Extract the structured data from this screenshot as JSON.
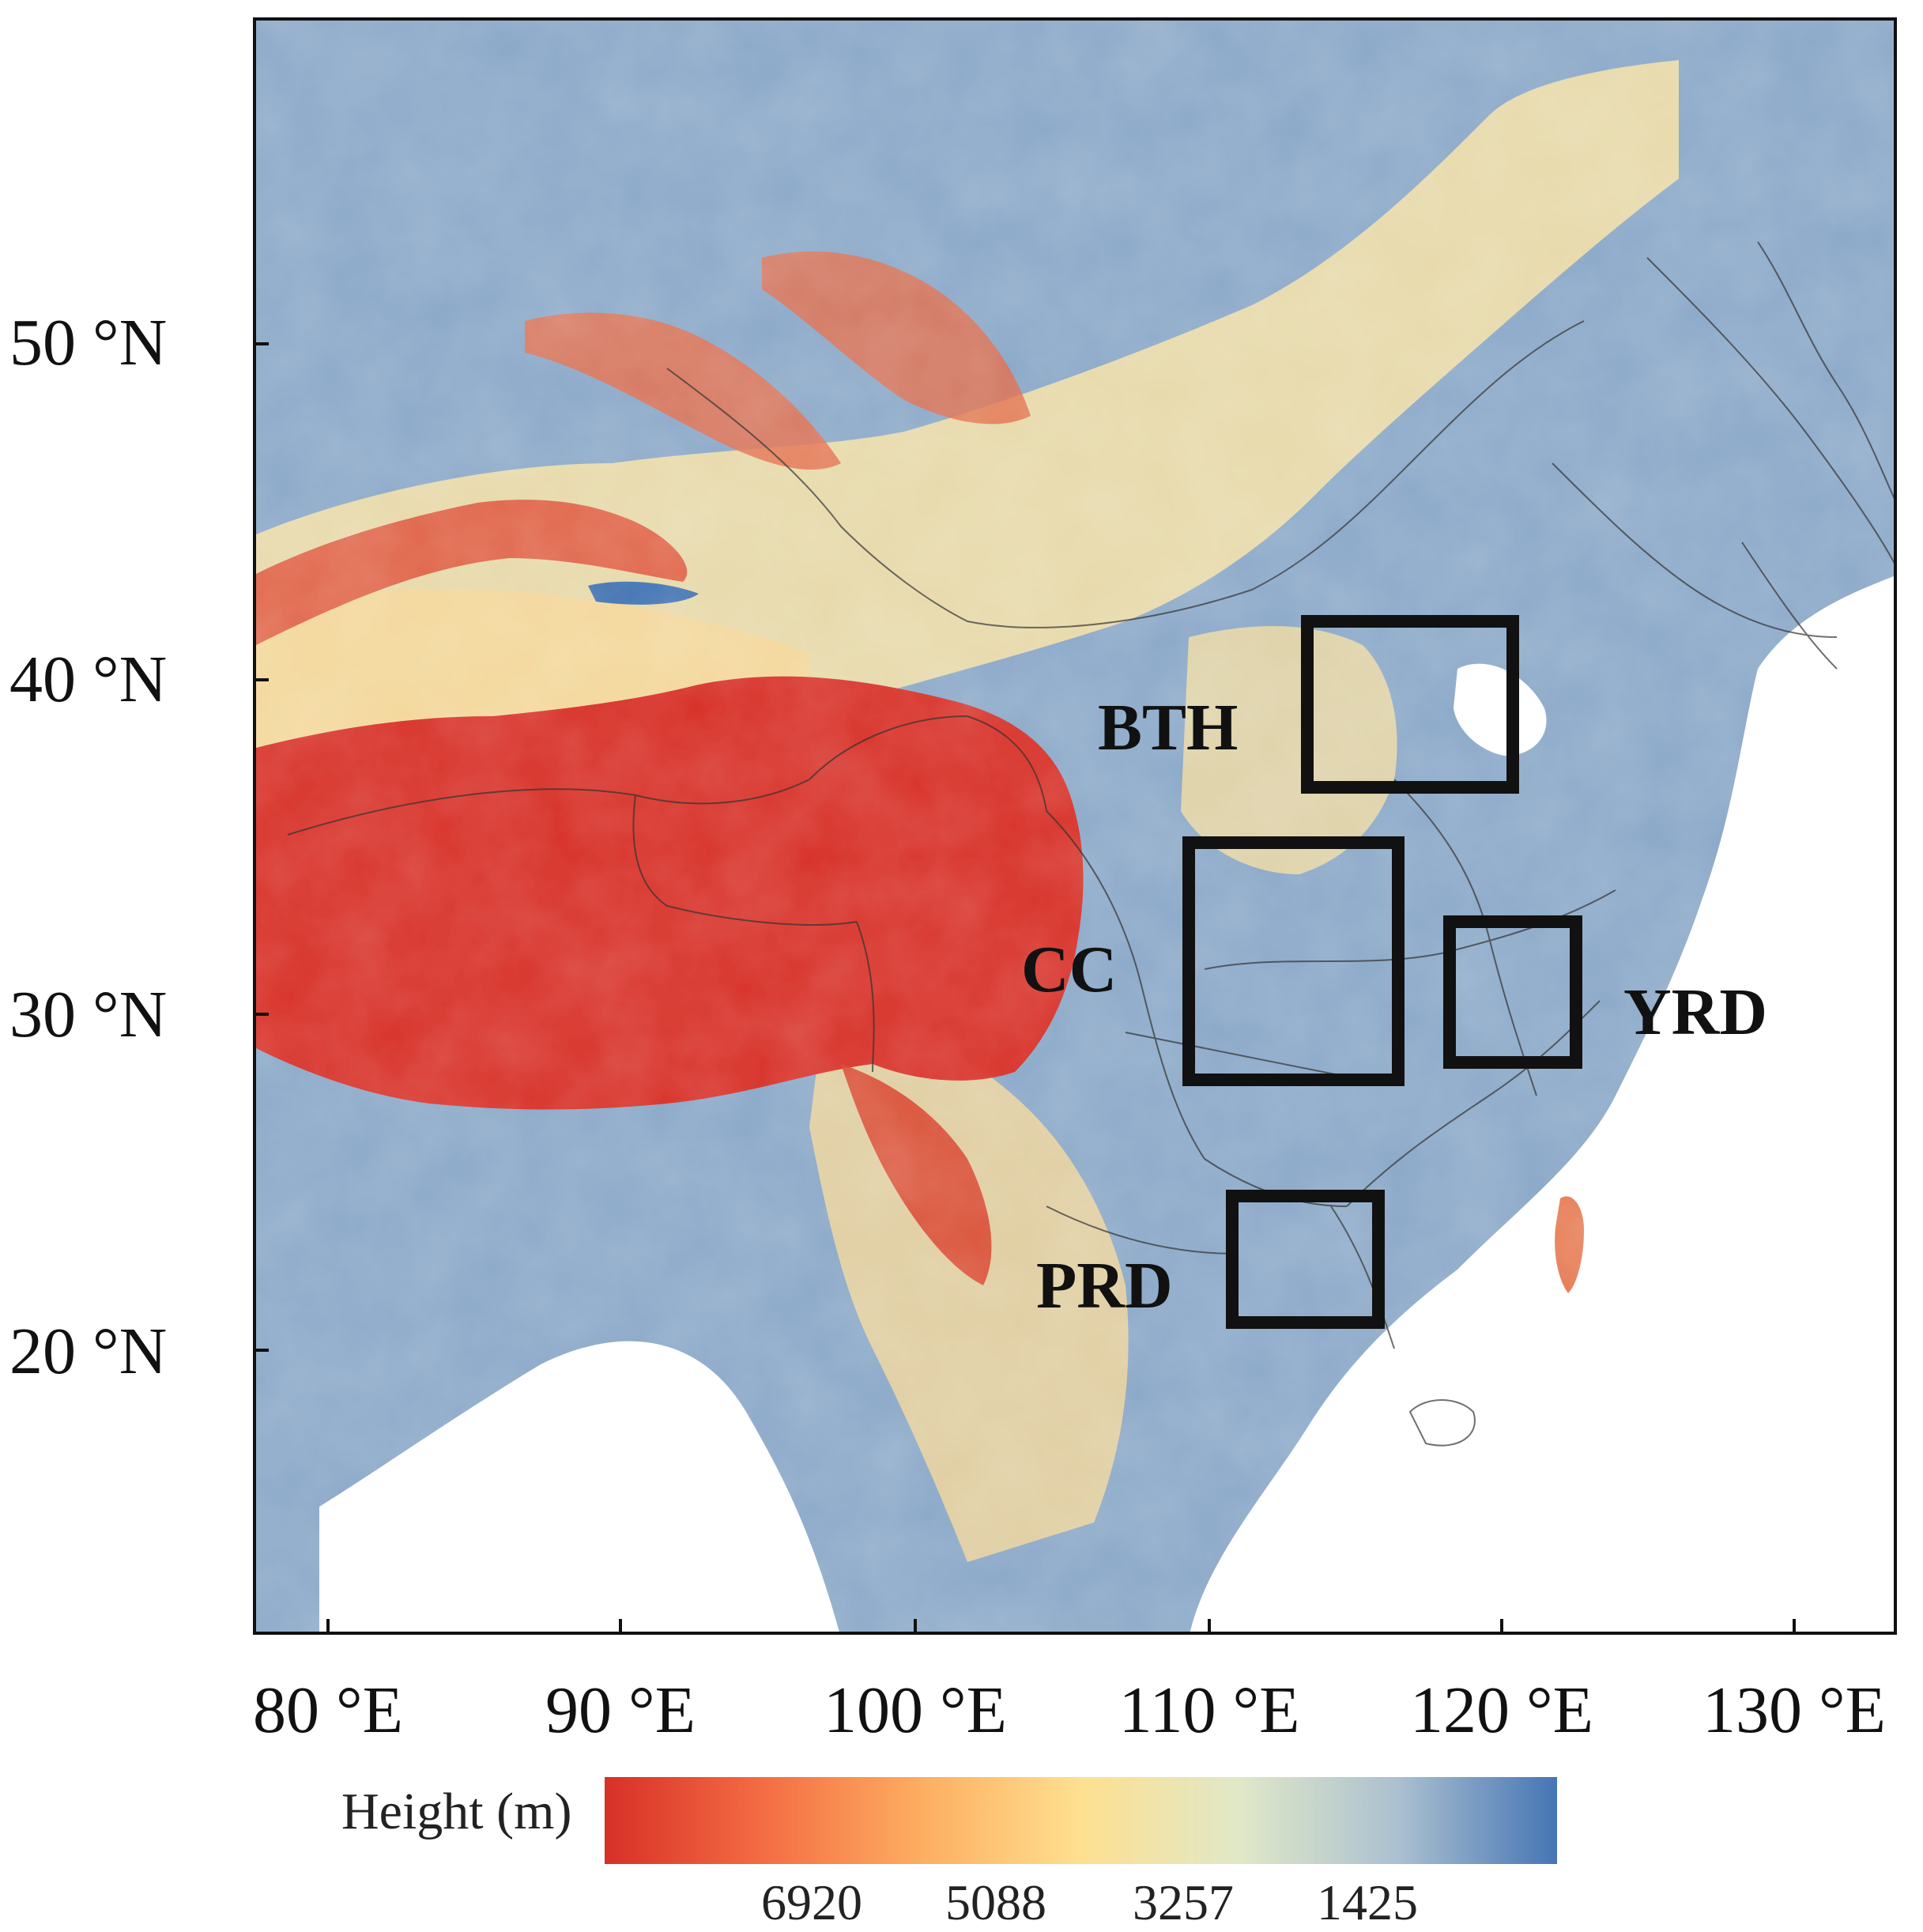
{
  "map": {
    "lat_ticks": [
      "50 °N",
      "40 °N",
      "30 °N",
      "20 °N"
    ],
    "lon_ticks": [
      "80 °E",
      "90 °E",
      "100 °E",
      "110 °E",
      "120 °E",
      "130 °E"
    ],
    "regions": [
      {
        "id": "bth",
        "label": "BTH"
      },
      {
        "id": "cc",
        "label": "CC"
      },
      {
        "id": "yrd",
        "label": "YRD"
      },
      {
        "id": "prd",
        "label": "PRD"
      }
    ]
  },
  "legend": {
    "label": "Height (m)",
    "ticks": [
      "6920",
      "5088",
      "3257",
      "1425"
    ],
    "gradient_colors": [
      "#d73027",
      "#f46d43",
      "#fdae61",
      "#fee090",
      "#e0e8c8",
      "#abc0d0",
      "#4575b4"
    ]
  }
}
